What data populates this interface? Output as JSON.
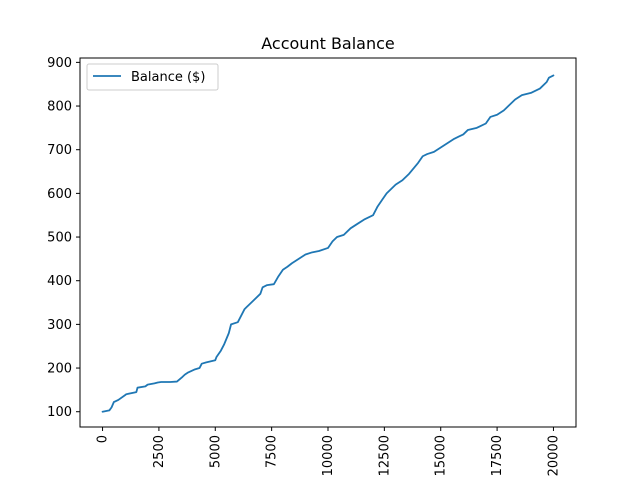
{
  "chart_data": {
    "type": "line",
    "title": "Account Balance",
    "xlabel": "",
    "ylabel": "",
    "xlim": [
      -1000,
      21000
    ],
    "ylim": [
      65,
      910
    ],
    "xticks": [
      0,
      2500,
      5000,
      7500,
      10000,
      12500,
      15000,
      17500,
      20000
    ],
    "xtick_labels": [
      "0",
      "2500",
      "5000",
      "7500",
      "10000",
      "12500",
      "15000",
      "17500",
      "20000"
    ],
    "xtick_rotation": 90,
    "yticks": [
      100,
      200,
      300,
      400,
      500,
      600,
      700,
      800,
      900
    ],
    "ytick_labels": [
      "100",
      "200",
      "300",
      "400",
      "500",
      "600",
      "700",
      "800",
      "900"
    ],
    "grid": false,
    "legend": {
      "position": "top-left",
      "entries": [
        "Balance ($)"
      ]
    },
    "colors": {
      "line": "#1f77b4"
    },
    "series": [
      {
        "name": "Balance ($)",
        "x": [
          0,
          300,
          400,
          500,
          700,
          1000,
          1050,
          1500,
          1550,
          1900,
          2000,
          2300,
          2450,
          2600,
          3000,
          3300,
          3550,
          3650,
          3800,
          4100,
          4300,
          4400,
          4600,
          5000,
          5050,
          5250,
          5400,
          5600,
          5700,
          6000,
          6200,
          6300,
          6400,
          6700,
          7000,
          7100,
          7300,
          7600,
          7800,
          8000,
          8200,
          8400,
          8700,
          9000,
          9300,
          9600,
          10000,
          10200,
          10400,
          10700,
          11000,
          11300,
          11600,
          12000,
          12200,
          12400,
          12600,
          12800,
          13000,
          13300,
          13600,
          14000,
          14200,
          14400,
          14700,
          15000,
          15300,
          15600,
          15800,
          16000,
          16200,
          16600,
          17000,
          17200,
          17500,
          17800,
          18000,
          18300,
          18600,
          19000,
          19400,
          19700,
          19800,
          20000
        ],
        "y": [
          100,
          103,
          110,
          122,
          127,
          138,
          140,
          145,
          155,
          158,
          162,
          165,
          167,
          168,
          168,
          169,
          180,
          185,
          190,
          197,
          200,
          210,
          213,
          218,
          225,
          240,
          255,
          280,
          300,
          305,
          325,
          335,
          340,
          355,
          370,
          385,
          390,
          392,
          410,
          425,
          432,
          440,
          450,
          460,
          465,
          468,
          475,
          490,
          500,
          505,
          520,
          530,
          540,
          550,
          570,
          585,
          600,
          610,
          620,
          630,
          645,
          670,
          685,
          690,
          695,
          705,
          715,
          725,
          730,
          735,
          745,
          750,
          760,
          775,
          780,
          790,
          800,
          815,
          825,
          830,
          840,
          855,
          865,
          870
        ]
      }
    ]
  }
}
